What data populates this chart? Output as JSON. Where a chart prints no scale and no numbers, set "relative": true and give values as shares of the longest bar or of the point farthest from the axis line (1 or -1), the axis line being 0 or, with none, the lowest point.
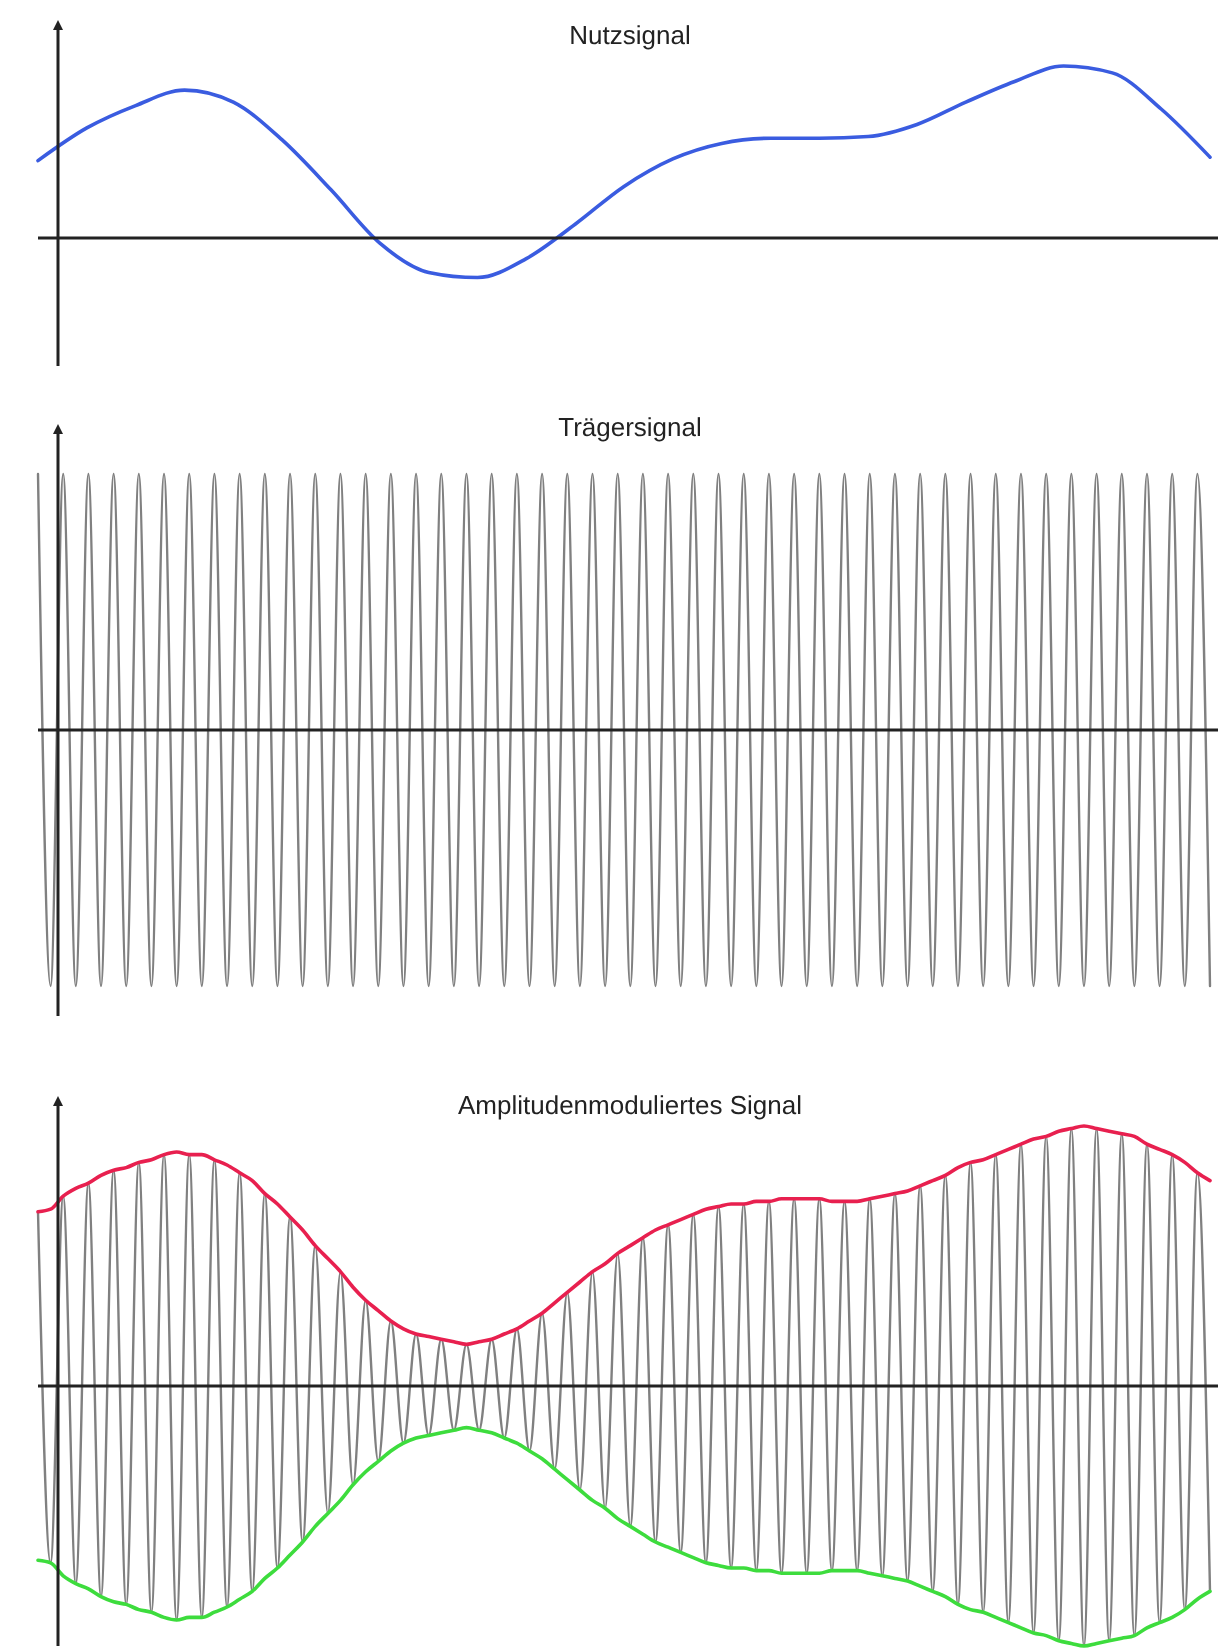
{
  "chart_data": [
    {
      "type": "line",
      "title": "Nutzsignal",
      "relative": true,
      "categories": [
        null,
        null,
        null,
        null,
        null,
        null,
        null,
        null,
        null,
        null,
        null,
        null,
        null,
        null,
        null,
        null,
        null,
        null,
        null,
        null,
        null,
        null,
        null,
        null,
        null
      ],
      "series": [
        {
          "color": "#3a5ce0",
          "values": [
            0.45,
            0.64,
            0.77,
            0.86,
            0.79,
            0.57,
            0.28,
            -0.03,
            -0.2,
            -0.23,
            -0.12,
            0.08,
            0.3,
            0.46,
            0.55,
            0.58,
            0.58,
            0.59,
            0.66,
            0.79,
            0.91,
            1.0,
            0.96,
            0.75,
            0.47
          ]
        }
      ]
    },
    {
      "type": "line",
      "title": "Trägersignal",
      "relative": true,
      "categories": [
        null,
        null,
        null,
        null,
        null,
        null,
        null,
        null,
        null,
        null,
        null,
        null,
        null,
        null,
        null,
        null,
        null,
        null,
        null,
        null,
        null,
        null,
        null,
        null,
        null,
        null,
        null,
        null,
        null,
        null,
        null,
        null,
        null,
        null,
        null,
        null,
        null,
        null,
        null,
        null,
        null,
        null,
        null,
        null,
        null,
        null,
        null,
        null,
        null,
        null,
        null,
        null,
        null,
        null,
        null,
        null,
        null,
        null,
        null,
        null,
        null,
        null,
        null,
        null,
        null,
        null,
        null,
        null,
        null,
        null,
        null,
        null,
        null,
        null,
        null,
        null,
        null,
        null,
        null,
        null,
        null,
        null,
        null,
        null,
        null,
        null,
        null,
        null,
        null,
        null,
        null,
        null,
        null,
        null
      ],
      "series": [
        {
          "color": "#808080",
          "values": [
            1,
            -1,
            1,
            -1,
            1,
            -1,
            1,
            -1,
            1,
            -1,
            1,
            -1,
            1,
            -1,
            1,
            -1,
            1,
            -1,
            1,
            -1,
            1,
            -1,
            1,
            -1,
            1,
            -1,
            1,
            -1,
            1,
            -1,
            1,
            -1,
            1,
            -1,
            1,
            -1,
            1,
            -1,
            1,
            -1,
            1,
            -1,
            1,
            -1,
            1,
            -1,
            1,
            -1,
            1,
            -1,
            1,
            -1,
            1,
            -1,
            1,
            -1,
            1,
            -1,
            1,
            -1,
            1,
            -1,
            1,
            -1,
            1,
            -1,
            1,
            -1,
            1,
            -1,
            1,
            -1,
            1,
            -1,
            1,
            -1,
            1,
            -1,
            1,
            -1,
            1,
            -1,
            1,
            -1,
            1,
            -1,
            1,
            -1,
            1,
            -1,
            1,
            -1,
            1,
            -1
          ]
        }
      ]
    },
    {
      "type": "line",
      "title": "Amplitudenmoduliertes Signal",
      "relative": true,
      "categories": [
        null,
        null,
        null,
        null,
        null,
        null,
        null,
        null,
        null,
        null,
        null,
        null,
        null,
        null,
        null,
        null,
        null,
        null,
        null,
        null,
        null,
        null,
        null,
        null,
        null,
        null,
        null,
        null,
        null,
        null,
        null,
        null,
        null,
        null,
        null,
        null,
        null,
        null,
        null,
        null,
        null,
        null,
        null,
        null,
        null,
        null,
        null,
        null,
        null,
        null,
        null,
        null,
        null,
        null,
        null,
        null,
        null,
        null,
        null,
        null,
        null,
        null,
        null,
        null,
        null,
        null,
        null,
        null,
        null,
        null,
        null,
        null,
        null,
        null,
        null,
        null,
        null,
        null,
        null,
        null,
        null,
        null,
        null,
        null,
        null,
        null,
        null,
        null,
        null,
        null,
        null,
        null,
        null,
        null
      ],
      "series": [
        {
          "color": "#808080",
          "values": [
            0.67,
            -0.68,
            0.73,
            -0.76,
            0.78,
            -0.81,
            0.83,
            -0.84,
            0.86,
            -0.87,
            0.89,
            -0.9,
            0.89,
            -0.89,
            0.87,
            -0.85,
            0.82,
            -0.79,
            0.74,
            -0.7,
            0.65,
            -0.6,
            0.54,
            -0.49,
            0.44,
            -0.38,
            0.33,
            -0.29,
            0.25,
            -0.22,
            0.2,
            -0.19,
            0.18,
            -0.17,
            0.16,
            -0.17,
            0.18,
            -0.2,
            0.22,
            -0.25,
            0.28,
            -0.32,
            0.36,
            -0.4,
            0.44,
            -0.47,
            0.51,
            -0.54,
            0.57,
            -0.6,
            0.62,
            -0.64,
            0.66,
            -0.68,
            0.69,
            -0.7,
            0.7,
            -0.71,
            0.71,
            -0.72,
            0.72,
            -0.72,
            0.72,
            -0.71,
            0.71,
            -0.71,
            0.72,
            -0.73,
            0.74,
            -0.75,
            0.77,
            -0.79,
            0.81,
            -0.84,
            0.86,
            -0.87,
            0.89,
            -0.91,
            0.93,
            -0.95,
            0.96,
            -0.98,
            0.99,
            -1.0,
            0.99,
            -0.98,
            0.97,
            -0.96,
            0.93,
            -0.91,
            0.89,
            -0.86,
            0.82,
            -0.79
          ]
        },
        {
          "color": "#e8204f",
          "values": [
            0.67,
            0.68,
            0.73,
            0.76,
            0.78,
            0.81,
            0.83,
            0.84,
            0.86,
            0.87,
            0.89,
            0.9,
            0.89,
            0.89,
            0.87,
            0.85,
            0.82,
            0.79,
            0.74,
            0.7,
            0.65,
            0.6,
            0.54,
            0.49,
            0.44,
            0.38,
            0.33,
            0.29,
            0.25,
            0.22,
            0.2,
            0.19,
            0.18,
            0.17,
            0.16,
            0.17,
            0.18,
            0.2,
            0.22,
            0.25,
            0.28,
            0.32,
            0.36,
            0.4,
            0.44,
            0.47,
            0.51,
            0.54,
            0.57,
            0.6,
            0.62,
            0.64,
            0.66,
            0.68,
            0.69,
            0.7,
            0.7,
            0.71,
            0.71,
            0.72,
            0.72,
            0.72,
            0.72,
            0.71,
            0.71,
            0.71,
            0.72,
            0.73,
            0.74,
            0.75,
            0.77,
            0.79,
            0.81,
            0.84,
            0.86,
            0.87,
            0.89,
            0.91,
            0.93,
            0.95,
            0.96,
            0.98,
            0.99,
            1.0,
            0.99,
            0.98,
            0.97,
            0.96,
            0.93,
            0.91,
            0.89,
            0.86,
            0.82,
            0.79
          ]
        },
        {
          "color": "#3ddc3d",
          "values": [
            -0.67,
            -0.68,
            -0.73,
            -0.76,
            -0.78,
            -0.81,
            -0.83,
            -0.84,
            -0.86,
            -0.87,
            -0.89,
            -0.9,
            -0.89,
            -0.89,
            -0.87,
            -0.85,
            -0.82,
            -0.79,
            -0.74,
            -0.7,
            -0.65,
            -0.6,
            -0.54,
            -0.49,
            -0.44,
            -0.38,
            -0.33,
            -0.29,
            -0.25,
            -0.22,
            -0.2,
            -0.19,
            -0.18,
            -0.17,
            -0.16,
            -0.17,
            -0.18,
            -0.2,
            -0.22,
            -0.25,
            -0.28,
            -0.32,
            -0.36,
            -0.4,
            -0.44,
            -0.47,
            -0.51,
            -0.54,
            -0.57,
            -0.6,
            -0.62,
            -0.64,
            -0.66,
            -0.68,
            -0.69,
            -0.7,
            -0.7,
            -0.71,
            -0.71,
            -0.72,
            -0.72,
            -0.72,
            -0.72,
            -0.71,
            -0.71,
            -0.71,
            -0.72,
            -0.73,
            -0.74,
            -0.75,
            -0.77,
            -0.79,
            -0.81,
            -0.84,
            -0.86,
            -0.87,
            -0.89,
            -0.91,
            -0.93,
            -0.95,
            -0.96,
            -0.98,
            -0.99,
            -1.0,
            -0.99,
            -0.98,
            -0.97,
            -0.96,
            -0.93,
            -0.91,
            -0.89,
            -0.86,
            -0.82,
            -0.79
          ]
        }
      ]
    }
  ]
}
